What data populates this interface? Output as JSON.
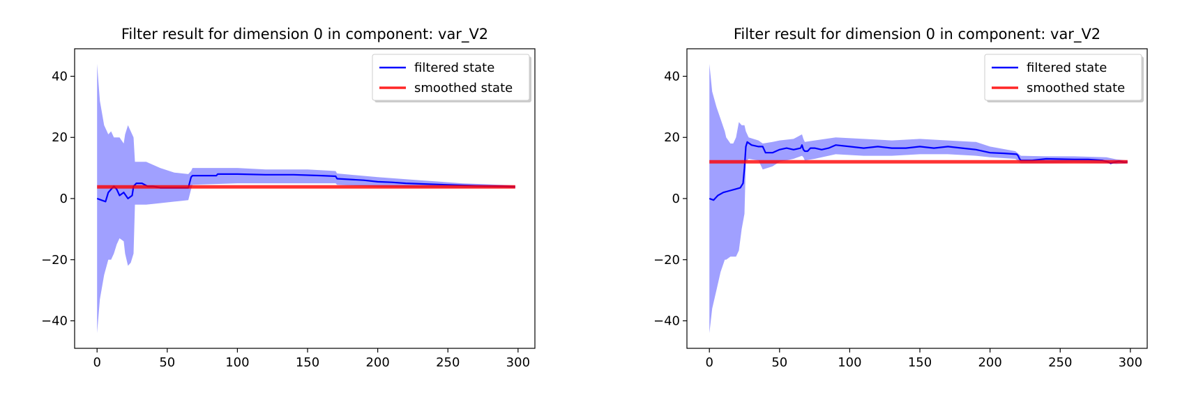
{
  "chart_data": [
    {
      "type": "line",
      "title": "Filter result for dimension 0 in component: var_V2",
      "xlabel": "",
      "ylabel": "",
      "xlim": [
        -16,
        312
      ],
      "ylim": [
        -49,
        49
      ],
      "xticks": [
        0,
        50,
        100,
        150,
        200,
        250,
        300
      ],
      "yticks": [
        -40,
        -20,
        0,
        20,
        40
      ],
      "grid": false,
      "legend_position": "top-right",
      "series": [
        {
          "name": "filtered state",
          "color": "#0000ff",
          "x": [
            0,
            3,
            6,
            8,
            10,
            12,
            14,
            16,
            19,
            22,
            25,
            26,
            28,
            32,
            36,
            40,
            45,
            50,
            55,
            60,
            65,
            67,
            68,
            85,
            86,
            100,
            120,
            140,
            160,
            170,
            171,
            190,
            200,
            210,
            220,
            230,
            250,
            270,
            290,
            298
          ],
          "values": [
            0,
            -0.5,
            -1,
            2,
            3,
            4,
            3,
            1,
            2,
            0,
            1,
            4,
            5,
            5,
            4,
            4,
            3.5,
            3.5,
            3.5,
            3.5,
            3.5,
            7,
            7.5,
            7.5,
            8,
            8,
            7.8,
            7.8,
            7.5,
            7.3,
            6.5,
            6,
            5.5,
            5.3,
            5,
            4.8,
            4.5,
            4.2,
            4,
            3.8
          ]
        },
        {
          "name": "smoothed state",
          "color": "#ff0000",
          "x": [
            0,
            298
          ],
          "values": [
            3.8,
            3.8
          ]
        }
      ],
      "confidence_band": {
        "color": "#8080ff",
        "x": [
          0,
          2,
          5,
          8,
          10,
          12,
          14,
          16,
          19,
          20,
          22,
          24,
          26,
          27,
          35,
          45,
          55,
          65,
          67,
          68,
          100,
          120,
          150,
          170,
          171,
          200,
          230,
          260,
          298
        ],
        "upper": [
          44,
          32,
          24,
          21,
          22,
          20,
          20,
          20,
          18,
          21,
          24,
          22,
          20,
          12,
          12,
          10,
          8.5,
          8,
          9,
          10,
          10,
          9.5,
          9.5,
          9,
          8.2,
          7,
          6,
          5,
          4.3
        ],
        "lower": [
          -44,
          -33,
          -25,
          -20,
          -20,
          -18,
          -15,
          -13,
          -14,
          -18,
          -22,
          -21,
          -18,
          -2,
          -2,
          -1.5,
          -1,
          -0.5,
          3,
          4.5,
          5,
          5,
          5,
          5,
          4.5,
          3.8,
          3.6,
          3.5,
          3.4
        ]
      }
    },
    {
      "type": "line",
      "title": "Filter result for dimension 0 in component: var_V2",
      "xlabel": "",
      "ylabel": "",
      "xlim": [
        -16,
        312
      ],
      "ylim": [
        -49,
        49
      ],
      "xticks": [
        0,
        50,
        100,
        150,
        200,
        250,
        300
      ],
      "yticks": [
        -40,
        -20,
        0,
        20,
        40
      ],
      "grid": false,
      "legend_position": "top-right",
      "series": [
        {
          "name": "filtered state",
          "color": "#0000ff",
          "x": [
            0,
            3,
            6,
            10,
            14,
            18,
            22,
            24,
            25,
            26,
            27,
            30,
            35,
            38,
            40,
            45,
            50,
            55,
            60,
            65,
            66,
            67,
            68,
            70,
            72,
            75,
            80,
            85,
            90,
            100,
            110,
            120,
            130,
            140,
            150,
            160,
            170,
            180,
            190,
            200,
            210,
            219,
            220,
            221,
            222,
            230,
            240,
            260,
            270,
            280,
            284,
            286,
            288,
            290,
            292,
            294,
            296,
            298
          ],
          "values": [
            0,
            -0.5,
            1,
            2,
            2.5,
            3,
            3.5,
            5,
            10,
            17,
            18.5,
            17.5,
            17,
            17,
            15,
            15,
            16,
            16.5,
            16,
            16.5,
            17.5,
            16,
            15.5,
            15.5,
            16.5,
            16.5,
            16,
            16.5,
            17.5,
            17,
            16.5,
            17,
            16.5,
            16.5,
            17,
            16.5,
            17,
            16.5,
            16,
            15,
            14.8,
            14.5,
            14,
            13,
            12.5,
            12.5,
            13,
            12.8,
            12.8,
            12.5,
            12,
            11.5,
            11.8,
            12,
            12.2,
            12,
            11.8,
            12
          ]
        },
        {
          "name": "smoothed state",
          "color": "#ff0000",
          "x": [
            0,
            298
          ],
          "values": [
            12,
            12
          ]
        }
      ],
      "confidence_band": {
        "color": "#8080ff",
        "x": [
          0,
          2,
          5,
          8,
          11,
          12,
          15,
          17,
          19,
          21,
          23,
          25,
          26,
          28,
          35,
          38,
          45,
          50,
          60,
          66,
          67,
          68,
          75,
          90,
          110,
          130,
          150,
          170,
          190,
          200,
          218,
          222,
          240,
          260,
          283,
          290,
          298
        ],
        "upper": [
          44,
          35,
          30,
          26,
          22,
          20,
          18,
          18,
          20,
          25,
          24,
          24,
          22,
          20,
          19,
          18,
          18.5,
          19,
          19.5,
          21,
          19.5,
          18.5,
          19,
          20,
          19.5,
          19,
          19.5,
          19,
          18.5,
          17,
          15.5,
          14,
          13.8,
          13.8,
          13.5,
          12.8,
          12.5
        ],
        "lower": [
          -44,
          -36,
          -30,
          -24,
          -20,
          -20,
          -19,
          -19,
          -19,
          -17,
          -10,
          -5,
          12,
          13,
          12.5,
          9.5,
          10.5,
          12,
          13,
          14,
          13.5,
          12.5,
          13,
          14.5,
          14,
          14,
          14.5,
          14.5,
          14,
          13.5,
          13,
          11.5,
          11.5,
          11.8,
          11.5,
          11.3,
          11.5
        ]
      }
    }
  ]
}
